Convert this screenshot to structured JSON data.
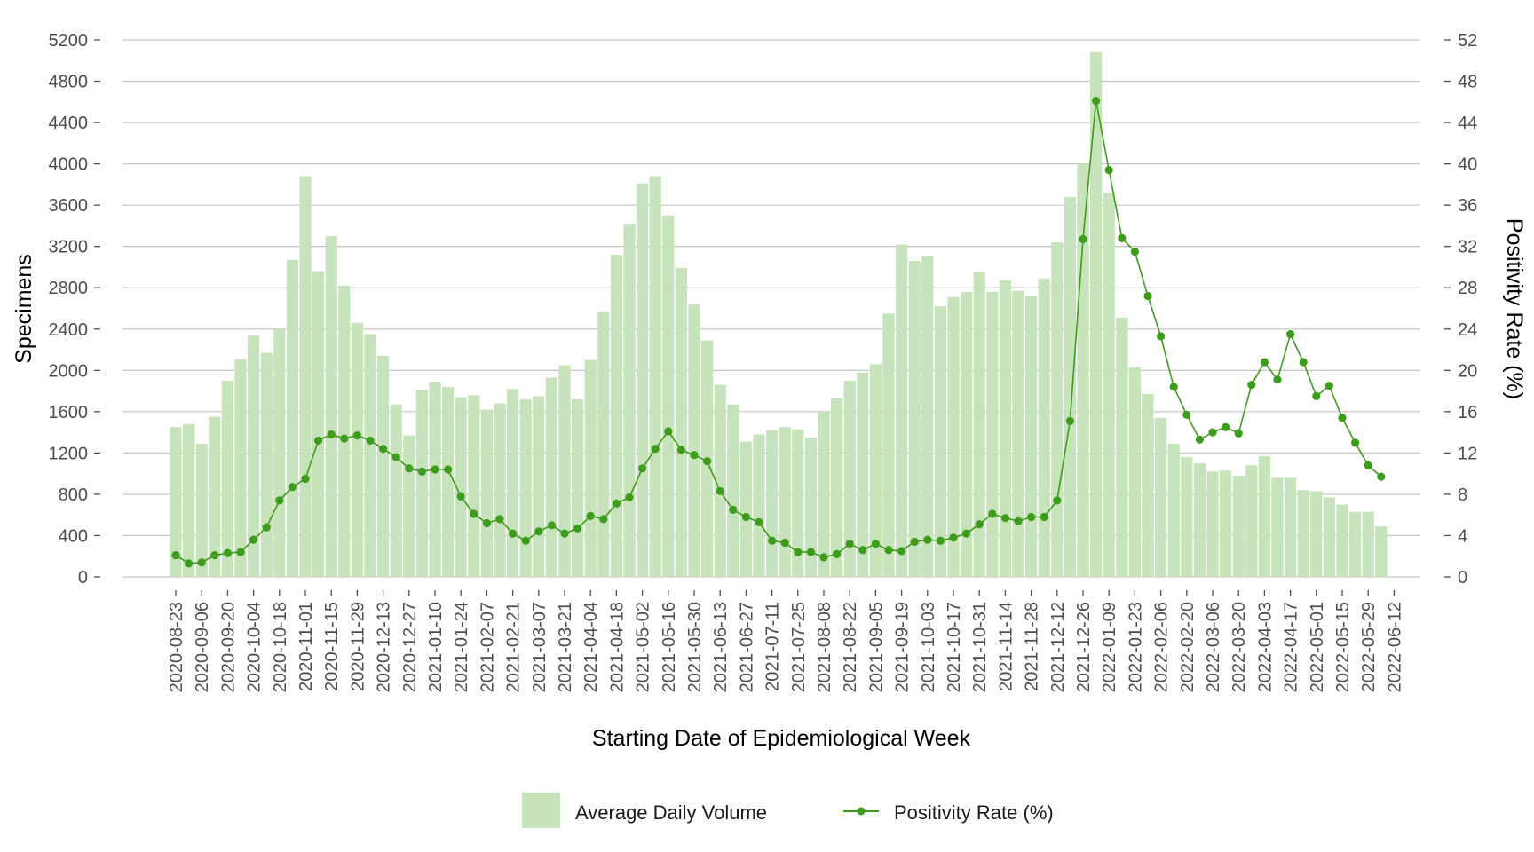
{
  "chart_data": {
    "type": "bar+line",
    "title": "",
    "xlabel": "Starting Date of Epidemiological Week",
    "ylabel": "Specimens",
    "y2label": "Positivity Rate (%)",
    "ylim": [
      0,
      5200
    ],
    "y2lim": [
      0,
      52
    ],
    "yticks": [
      0,
      400,
      800,
      1200,
      1600,
      2000,
      2400,
      2800,
      3200,
      3600,
      4000,
      4400,
      4800,
      5200
    ],
    "y2ticks": [
      0,
      4,
      8,
      12,
      16,
      20,
      24,
      28,
      32,
      36,
      40,
      44,
      48,
      52
    ],
    "grid": true,
    "legend_position": "bottom",
    "colors": {
      "bar": "#c7e3bb",
      "line": "#3e9c1c",
      "grid": "#c8c8c8"
    },
    "x_tick_labels": [
      "2020-08-23",
      "2020-09-06",
      "2020-09-20",
      "2020-10-04",
      "2020-10-18",
      "2020-11-01",
      "2020-11-15",
      "2020-11-29",
      "2020-12-13",
      "2020-12-27",
      "2021-01-10",
      "2021-01-24",
      "2021-02-07",
      "2021-02-21",
      "2021-03-07",
      "2021-03-21",
      "2021-04-04",
      "2021-04-18",
      "2021-05-02",
      "2021-05-16",
      "2021-05-30",
      "2021-06-13",
      "2021-06-27",
      "2021-07-11",
      "2021-07-25",
      "2021-08-08",
      "2021-08-22",
      "2021-09-05",
      "2021-09-19",
      "2021-10-03",
      "2021-10-17",
      "2021-10-31",
      "2021-11-14",
      "2021-11-28",
      "2021-12-12",
      "2021-12-26",
      "2022-01-09",
      "2022-01-23",
      "2022-02-06",
      "2022-02-20",
      "2022-03-06",
      "2022-03-20",
      "2022-04-03",
      "2022-04-17",
      "2022-05-01",
      "2022-05-15",
      "2022-05-29",
      "2022-06-12"
    ],
    "weeks_start": "2020-08-23",
    "series": [
      {
        "name": "Average Daily Volume",
        "kind": "bar",
        "axis": "left",
        "values": [
          1450,
          1480,
          1290,
          1550,
          1900,
          2110,
          2340,
          2170,
          2400,
          3070,
          3880,
          2960,
          3300,
          2820,
          2460,
          2350,
          2140,
          1670,
          1370,
          1810,
          1890,
          1840,
          1740,
          1760,
          1620,
          1680,
          1820,
          1720,
          1750,
          1930,
          2050,
          1720,
          2100,
          2570,
          3120,
          3420,
          3810,
          3880,
          3500,
          2990,
          2640,
          2290,
          1860,
          1670,
          1310,
          1380,
          1420,
          1450,
          1430,
          1350,
          1600,
          1730,
          1900,
          1980,
          2060,
          2550,
          3220,
          3060,
          3110,
          2620,
          2710,
          2760,
          2950,
          2760,
          2870,
          2770,
          2720,
          2890,
          3240,
          3680,
          4000,
          5080,
          3720,
          2510,
          2030,
          1770,
          1540,
          1290,
          1160,
          1100,
          1020,
          1030,
          980,
          1080,
          1170,
          960,
          960,
          840,
          830,
          770,
          700,
          630,
          630,
          490
        ]
      },
      {
        "name": "Positivity Rate (%)",
        "kind": "line",
        "axis": "right",
        "values": [
          2.1,
          1.3,
          1.4,
          2.1,
          2.3,
          2.4,
          3.6,
          4.8,
          7.4,
          8.7,
          9.5,
          13.2,
          13.8,
          13.4,
          13.7,
          13.2,
          12.4,
          11.6,
          10.5,
          10.2,
          10.4,
          10.4,
          7.8,
          6.1,
          5.2,
          5.6,
          4.2,
          3.5,
          4.4,
          5.0,
          4.2,
          4.7,
          5.9,
          5.6,
          7.1,
          7.7,
          10.5,
          12.4,
          14.1,
          12.3,
          11.8,
          11.2,
          8.3,
          6.5,
          5.8,
          5.3,
          3.5,
          3.3,
          2.4,
          2.4,
          1.9,
          2.2,
          3.2,
          2.6,
          3.2,
          2.6,
          2.5,
          3.4,
          3.6,
          3.5,
          3.8,
          4.2,
          5.1,
          6.1,
          5.7,
          5.4,
          5.8,
          5.8,
          7.4,
          15.1,
          32.7,
          46.1,
          39.4,
          32.8,
          31.5,
          27.2,
          23.3,
          18.4,
          15.7,
          13.3,
          14.0,
          14.5,
          13.9,
          18.6,
          20.8,
          19.1,
          23.5,
          20.8,
          17.5,
          18.5,
          15.4,
          13.0,
          10.8,
          9.7
        ]
      }
    ]
  }
}
